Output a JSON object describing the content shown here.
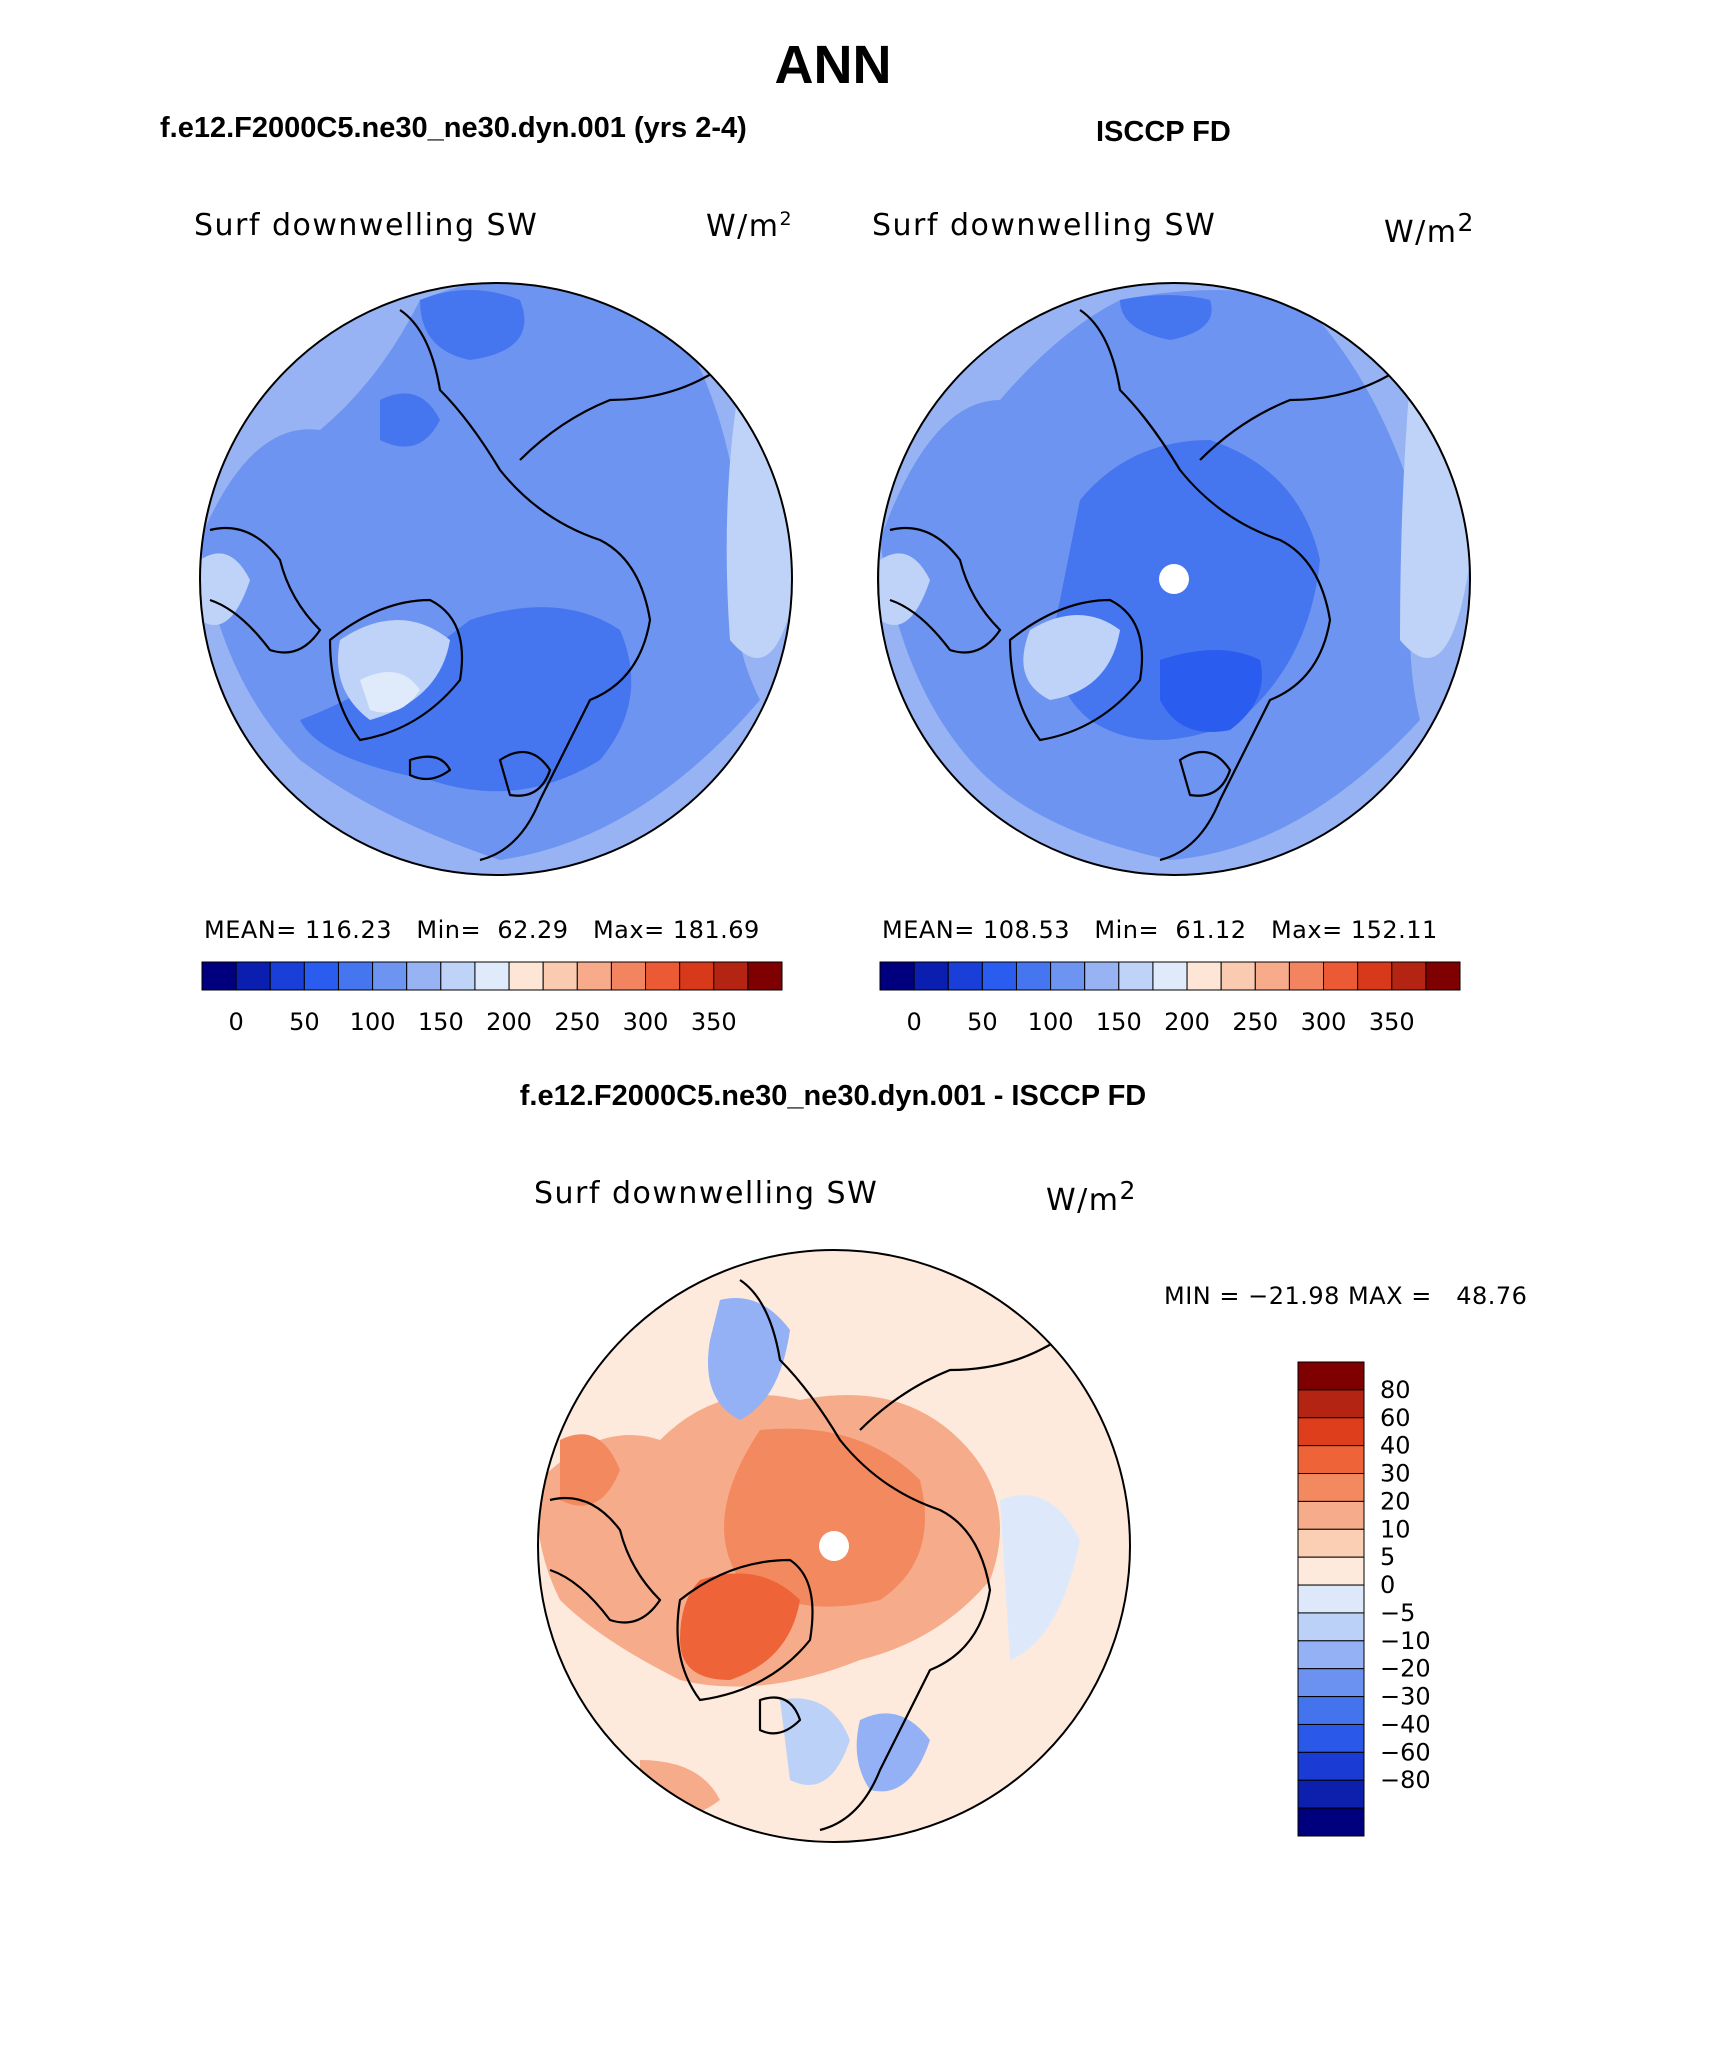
{
  "title": "ANN",
  "panels": [
    {
      "id": "model",
      "title": "f.e12.F2000C5.ne30_ne30.dyn.001 (yrs 2-4)",
      "variable": "Surf downwelling SW",
      "units": "W/m",
      "units_sup": "2",
      "stats": {
        "mean_label": "MEAN=",
        "mean": "116.23",
        "min_label": "Min=",
        "min": "62.29",
        "max_label": "Max=",
        "max": "181.69"
      }
    },
    {
      "id": "obs",
      "title": "ISCCP FD",
      "variable": "Surf downwelling SW",
      "units": "W/m",
      "units_sup": "2",
      "stats": {
        "mean_label": "MEAN=",
        "mean": "108.53",
        "min_label": "Min=",
        "min": "61.12",
        "max_label": "Max=",
        "max": "152.11"
      }
    },
    {
      "id": "diff",
      "title": "f.e12.F2000C5.ne30_ne30.dyn.001 - ISCCP FD",
      "variable": "Surf downwelling SW",
      "units": "W/m",
      "units_sup": "2",
      "stats_text": "MIN = −21.98 MAX =   48.76"
    }
  ],
  "chart_data": [
    {
      "type": "heatmap",
      "projection": "north-polar-stereographic",
      "title": "f.e12.F2000C5.ne30_ne30.dyn.001 (yrs 2-4)",
      "variable": "Surf downwelling SW",
      "units": "W/m2",
      "mean": 116.23,
      "min": 62.29,
      "max": 181.69,
      "colorbar": {
        "orientation": "horizontal",
        "tick_labels": [
          "0",
          "50",
          "100",
          "150",
          "200",
          "250",
          "300",
          "350"
        ],
        "colors": [
          "#00007f",
          "#0a1eb0",
          "#1a3fd8",
          "#2b5cf0",
          "#4576ef",
          "#6d94f0",
          "#97b3f4",
          "#bfd3f8",
          "#dfeafb",
          "#fde6d6",
          "#fbcbb1",
          "#f7ab8a",
          "#f28560",
          "#eb5a34",
          "#d9391b",
          "#b32512",
          "#7f0000"
        ]
      }
    },
    {
      "type": "heatmap",
      "projection": "north-polar-stereographic",
      "title": "ISCCP FD",
      "variable": "Surf downwelling SW",
      "units": "W/m2",
      "mean": 108.53,
      "min": 61.12,
      "max": 152.11,
      "colorbar": {
        "orientation": "horizontal",
        "tick_labels": [
          "0",
          "50",
          "100",
          "150",
          "200",
          "250",
          "300",
          "350"
        ],
        "colors": [
          "#00007f",
          "#0a1eb0",
          "#1a3fd8",
          "#2b5cf0",
          "#4576ef",
          "#6d94f0",
          "#97b3f4",
          "#bfd3f8",
          "#dfeafb",
          "#fde6d6",
          "#fbcbb1",
          "#f7ab8a",
          "#f28560",
          "#eb5a34",
          "#d9391b",
          "#b32512",
          "#7f0000"
        ]
      }
    },
    {
      "type": "heatmap",
      "projection": "north-polar-stereographic",
      "title": "f.e12.F2000C5.ne30_ne30.dyn.001 - ISCCP FD",
      "variable": "Surf downwelling SW",
      "units": "W/m2",
      "min": -21.98,
      "max": 48.76,
      "colorbar": {
        "orientation": "vertical",
        "tick_labels": [
          "80",
          "60",
          "40",
          "30",
          "20",
          "10",
          "5",
          "0",
          "−5",
          "−10",
          "−20",
          "−30",
          "−40",
          "−60",
          "−80"
        ],
        "colors": [
          "#7f0000",
          "#b32512",
          "#de3e1b",
          "#ee6438",
          "#f3895f",
          "#f6ac8a",
          "#fbcfb4",
          "#fdeadc",
          "#dde9fb",
          "#bcd1f8",
          "#93b1f4",
          "#6b92f0",
          "#4473ee",
          "#2a58e8",
          "#1a3cd4",
          "#0c20ad",
          "#00007f"
        ]
      }
    }
  ]
}
